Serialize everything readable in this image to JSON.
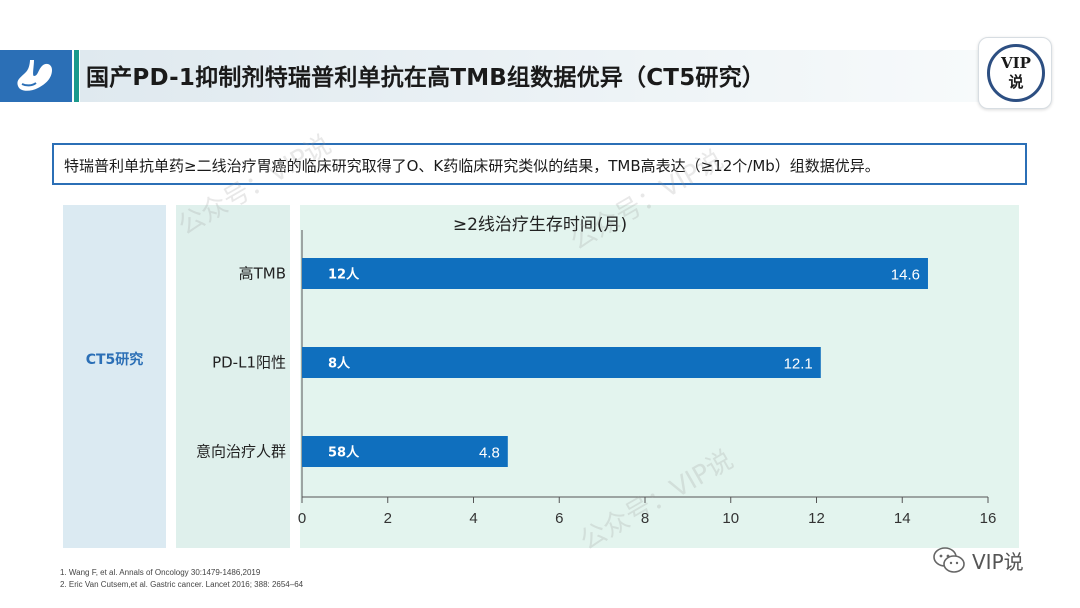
{
  "header": {
    "title": "国产PD-1抑制剂特瑞普利单抗在高TMB组数据优异（CT5研究）",
    "badge_line1": "VIP",
    "badge_line2": "说"
  },
  "summary": {
    "text": "特瑞普利单抗单药≥二线治疗胃癌的临床研究取得了O、K药临床研究类似的结果，TMB高表达（≥12个/Mb）组数据优异。"
  },
  "study": {
    "label": "CT5研究"
  },
  "chart_data": {
    "type": "bar",
    "orientation": "horizontal",
    "title": "≥2线治疗生存时间(月)",
    "categories": [
      "高TMB",
      "PD-L1阳性",
      "意向治疗人群"
    ],
    "values": [
      14.6,
      12.1,
      4.8
    ],
    "sample_sizes": [
      "12人",
      "8人",
      "58人"
    ],
    "xlim": [
      0,
      16
    ],
    "x_ticks": [
      "0",
      "2",
      "4",
      "6",
      "8",
      "10",
      "12",
      "14",
      "16"
    ],
    "value_labels": [
      "14.6",
      "12.1",
      "4.8"
    ],
    "bar_color": "#0f6fbe",
    "grid": false
  },
  "references": [
    "1. Wang F, et al. Annals of Oncology 30:1479-1486,2019",
    "2. Eric Van Cutsem,et al. Gastric cancer. Lancet 2016; 388: 2654–64"
  ],
  "watermark": "公众号：VIP说",
  "brand": {
    "text": "VIP说"
  },
  "colors": {
    "accent_blue": "#2b6fb6",
    "accent_teal": "#1c9a8c"
  }
}
